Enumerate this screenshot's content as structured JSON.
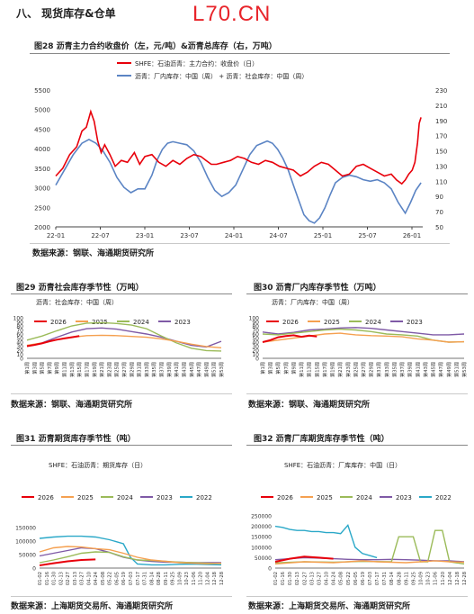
{
  "header": {
    "section_title": "八、   现货库存&仓单",
    "brand": "L70.CN"
  },
  "colors": {
    "red": "#e8000b",
    "blue": "#5b84c4",
    "orange": "#f5a050",
    "green": "#9bbb59",
    "purple": "#7f5aa6",
    "cyan": "#2aa8c8"
  },
  "chart_data": [
    {
      "id": "fig28",
      "type": "line",
      "title": "图28  沥青主力合约收盘价（左，元/吨）&沥青总库存（右，万吨）",
      "source": "数据来源：钢联、海通期货研究所",
      "x_ticks": [
        "22-01",
        "22-07",
        "23-01",
        "23-07",
        "24-01",
        "24-07",
        "25-01",
        "25-07",
        "26-01"
      ],
      "x_range": [
        2022.0,
        2026.2
      ],
      "y_left": {
        "ticks": [
          "2000",
          "2500",
          "3000",
          "3500",
          "4000",
          "4500",
          "5000",
          "5500"
        ],
        "range": [
          2000,
          5500
        ]
      },
      "y_right": {
        "ticks": [
          "50",
          "70",
          "90",
          "110",
          "130",
          "150",
          "170",
          "190",
          "210",
          "230"
        ],
        "range": [
          50,
          230
        ]
      },
      "series": [
        {
          "name": "SHFE：石油沥青：主力合约：收盘价（日）",
          "color": "red",
          "axis": "left",
          "x": [
            2022.0,
            2022.08,
            2022.16,
            2022.24,
            2022.3,
            2022.35,
            2022.4,
            2022.44,
            2022.48,
            2022.52,
            2022.56,
            2022.62,
            2022.68,
            2022.75,
            2022.82,
            2022.9,
            2022.96,
            2023.02,
            2023.1,
            2023.18,
            2023.26,
            2023.34,
            2023.42,
            2023.5,
            2023.58,
            2023.66,
            2023.72,
            2023.78,
            2023.84,
            2023.92,
            2024.0,
            2024.08,
            2024.16,
            2024.24,
            2024.32,
            2024.4,
            2024.48,
            2024.56,
            2024.64,
            2024.72,
            2024.8,
            2024.88,
            2024.96,
            2025.04,
            2025.12,
            2025.2,
            2025.28,
            2025.36,
            2025.44,
            2025.52,
            2025.6,
            2025.68,
            2025.76,
            2025.84,
            2025.9,
            2025.96,
            2026.0,
            2026.04,
            2026.08,
            2026.11,
            2026.14,
            2026.16,
            2026.18
          ],
          "y": [
            3300,
            3500,
            3850,
            4050,
            4450,
            4550,
            4950,
            4700,
            4200,
            3900,
            4100,
            3850,
            3550,
            3700,
            3650,
            3900,
            3600,
            3800,
            3850,
            3650,
            3550,
            3700,
            3600,
            3750,
            3850,
            3800,
            3700,
            3600,
            3600,
            3650,
            3700,
            3800,
            3750,
            3650,
            3600,
            3700,
            3650,
            3550,
            3500,
            3450,
            3300,
            3400,
            3550,
            3650,
            3600,
            3450,
            3300,
            3350,
            3550,
            3600,
            3500,
            3400,
            3300,
            3350,
            3200,
            3100,
            3200,
            3350,
            3450,
            3650,
            4150,
            4650,
            4800
          ]
        },
        {
          "name": "沥青：厂内库存：中国（周） + 沥青：社会库存：中国（周）",
          "color": "blue",
          "axis": "right",
          "x": [
            2022.0,
            2022.1,
            2022.2,
            2022.3,
            2022.38,
            2022.46,
            2022.54,
            2022.62,
            2022.7,
            2022.78,
            2022.86,
            2022.94,
            2023.02,
            2023.1,
            2023.16,
            2023.22,
            2023.28,
            2023.34,
            2023.42,
            2023.5,
            2023.58,
            2023.66,
            2023.74,
            2023.82,
            2023.9,
            2023.98,
            2024.06,
            2024.14,
            2024.22,
            2024.3,
            2024.36,
            2024.42,
            2024.48,
            2024.54,
            2024.6,
            2024.66,
            2024.72,
            2024.78,
            2024.84,
            2024.9,
            2024.96,
            2025.02,
            2025.08,
            2025.14,
            2025.2,
            2025.28,
            2025.36,
            2025.44,
            2025.52,
            2025.6,
            2025.68,
            2025.76,
            2025.84,
            2025.92,
            2026.0,
            2026.06,
            2026.12,
            2026.18
          ],
          "y": [
            105,
            125,
            145,
            160,
            165,
            160,
            150,
            135,
            115,
            102,
            95,
            100,
            100,
            118,
            138,
            152,
            160,
            162,
            160,
            158,
            150,
            135,
            115,
            98,
            90,
            95,
            105,
            125,
            145,
            157,
            160,
            163,
            160,
            152,
            140,
            125,
            105,
            85,
            66,
            58,
            55,
            62,
            75,
            92,
            108,
            115,
            118,
            116,
            112,
            110,
            112,
            108,
            100,
            82,
            68,
            82,
            98,
            108
          ]
        }
      ]
    },
    {
      "id": "fig29",
      "type": "line",
      "title": "图29  沥青社会库存季节性（万吨）",
      "subtitle": "沥青：社会库存：中国（周）",
      "source": "数据来源：钢联、海通期货研究所",
      "x_ticks": [
        "第1周",
        "第3周",
        "第5周",
        "第7周",
        "第9周",
        "第11周",
        "第13周",
        "第15周",
        "第17周",
        "第19周",
        "第21周",
        "第23周",
        "第25周",
        "第27周",
        "第29周",
        "第31周",
        "第33周",
        "第35周",
        "第37周",
        "第39周",
        "第41周",
        "第43周",
        "第45周",
        "第47周",
        "第49周",
        "第51周",
        "第53周"
      ],
      "x_range": [
        1,
        53
      ],
      "y_ticks": [
        "0",
        "10",
        "20",
        "30",
        "40",
        "50",
        "60",
        "70",
        "80",
        "90",
        "100"
      ],
      "y_range": [
        0,
        100
      ],
      "series": [
        {
          "name": "2026",
          "color": "red",
          "x": [
            1,
            3,
            5,
            7,
            9,
            11,
            13,
            15
          ],
          "y": [
            30,
            33,
            37,
            42,
            46,
            49,
            52,
            55
          ]
        },
        {
          "name": "2025",
          "color": "orange",
          "x": [
            1,
            5,
            9,
            13,
            17,
            21,
            25,
            29,
            33,
            37,
            41,
            45,
            49,
            53
          ],
          "y": [
            32,
            38,
            46,
            52,
            56,
            57,
            56,
            54,
            52,
            48,
            42,
            35,
            29,
            26
          ]
        },
        {
          "name": "2024",
          "color": "green",
          "x": [
            1,
            5,
            9,
            13,
            17,
            21,
            25,
            29,
            33,
            37,
            41,
            45,
            49,
            53
          ],
          "y": [
            45,
            55,
            68,
            80,
            87,
            88,
            86,
            82,
            73,
            55,
            38,
            25,
            19,
            18
          ]
        },
        {
          "name": "2023",
          "color": "purple",
          "x": [
            1,
            5,
            9,
            13,
            17,
            21,
            25,
            29,
            33,
            37,
            41,
            45,
            49,
            53
          ],
          "y": [
            30,
            38,
            52,
            65,
            73,
            75,
            72,
            66,
            60,
            52,
            42,
            32,
            28,
            42
          ]
        }
      ]
    },
    {
      "id": "fig30",
      "type": "line",
      "title": "图30  沥青厂内库存季节性（万吨）",
      "subtitle": "沥青：厂内库存：中国（周）",
      "source": "数据来源：钢联、海通期货研究所",
      "x_ticks": [
        "第1周",
        "第3周",
        "第5周",
        "第7周",
        "第9周",
        "第11周",
        "第13周",
        "第15周",
        "第17周",
        "第19周",
        "第21周",
        "第23周",
        "第25周",
        "第27周",
        "第29周",
        "第31周",
        "第33周",
        "第35周",
        "第37周",
        "第39周",
        "第41周",
        "第43周",
        "第45周",
        "第47周",
        "第49周",
        "第51周",
        "第53周"
      ],
      "x_range": [
        1,
        53
      ],
      "y_ticks": [
        "0",
        "10",
        "20",
        "30",
        "40",
        "50",
        "60",
        "70",
        "80",
        "90",
        "100"
      ],
      "y_range": [
        0,
        100
      ],
      "series": [
        {
          "name": "2026",
          "color": "red",
          "x": [
            1,
            3,
            5,
            7,
            9,
            11,
            13,
            15
          ],
          "y": [
            40,
            45,
            52,
            55,
            57,
            53,
            56,
            54
          ]
        },
        {
          "name": "2025",
          "color": "orange",
          "x": [
            1,
            5,
            9,
            13,
            17,
            21,
            25,
            29,
            33,
            37,
            41,
            45,
            49,
            53
          ],
          "y": [
            40,
            45,
            50,
            55,
            60,
            62,
            58,
            56,
            55,
            53,
            48,
            45,
            40,
            41
          ]
        },
        {
          "name": "2024",
          "color": "green",
          "x": [
            1,
            5,
            9,
            13,
            17,
            21,
            25,
            29,
            33,
            37,
            41,
            45,
            49,
            53
          ],
          "y": [
            60,
            58,
            62,
            66,
            70,
            72,
            70,
            66,
            60,
            58,
            55,
            45,
            40,
            41
          ]
        },
        {
          "name": "2023",
          "color": "purple",
          "x": [
            1,
            5,
            9,
            13,
            17,
            21,
            25,
            29,
            33,
            37,
            41,
            45,
            49,
            53
          ],
          "y": [
            65,
            60,
            64,
            70,
            72,
            75,
            76,
            74,
            70,
            66,
            62,
            58,
            58,
            60
          ]
        }
      ]
    },
    {
      "id": "fig31",
      "type": "line",
      "title": "图31  沥青期货库存季节性（吨）",
      "subtitle": "SHFE：石油沥青：期货库存（日）",
      "source": "数据来源：上海期货交易所、海通期货研究所",
      "x_ticks": [
        "01-02",
        "01-16",
        "01-30",
        "02-13",
        "02-27",
        "03-13",
        "03-27",
        "04-10",
        "04-24",
        "05-08",
        "05-22",
        "06-05",
        "06-19",
        "07-03",
        "07-17",
        "07-31",
        "08-14",
        "08-28",
        "09-11",
        "09-25",
        "10-09",
        "10-23",
        "11-06",
        "11-20",
        "12-04",
        "12-18",
        "12-28"
      ],
      "x_range": [
        0,
        26
      ],
      "y_ticks": [
        "0",
        "50000",
        "100000",
        "150000"
      ],
      "y_range": [
        0,
        150000
      ],
      "series": [
        {
          "name": "2026",
          "color": "red",
          "x": [
            0,
            2,
            4,
            6,
            8
          ],
          "y": [
            10000,
            18000,
            25000,
            30000,
            32000
          ]
        },
        {
          "name": "2025",
          "color": "orange",
          "x": [
            0,
            2,
            4,
            6,
            8,
            10,
            12,
            14,
            16,
            18,
            20,
            22,
            24,
            26
          ],
          "y": [
            60000,
            75000,
            80000,
            78000,
            72000,
            68000,
            55000,
            40000,
            30000,
            25000,
            20000,
            18000,
            16000,
            18000
          ]
        },
        {
          "name": "2024",
          "color": "green",
          "x": [
            0,
            2,
            4,
            6,
            8,
            10,
            12,
            14,
            16,
            18,
            20,
            22,
            24,
            26
          ],
          "y": [
            20000,
            30000,
            42000,
            55000,
            60000,
            58000,
            42000,
            30000,
            28000,
            25000,
            22000,
            20000,
            18000,
            17000
          ]
        },
        {
          "name": "2023",
          "color": "purple",
          "x": [
            0,
            2,
            4,
            6,
            8,
            10,
            12,
            14,
            16,
            18,
            20,
            22,
            24,
            26
          ],
          "y": [
            45000,
            55000,
            65000,
            75000,
            72000,
            58000,
            40000,
            30000,
            25000,
            22000,
            22000,
            20000,
            20000,
            20000
          ]
        },
        {
          "name": "2022",
          "color": "cyan",
          "x": [
            0,
            2,
            4,
            6,
            8,
            10,
            12,
            13,
            14,
            16,
            18,
            20,
            22,
            24,
            26
          ],
          "y": [
            110000,
            115000,
            118000,
            118000,
            115000,
            105000,
            90000,
            40000,
            15000,
            12000,
            12000,
            14000,
            15000,
            13000,
            12000
          ]
        }
      ]
    },
    {
      "id": "fig32",
      "type": "line",
      "title": "图32  沥青厂库期货库存季节性（吨）",
      "subtitle": "SHFE：石油沥青：厂库库存：中国（日）",
      "source": "数据来源：上海期货交易所、海通期货研究所",
      "x_ticks": [
        "01-02",
        "01-16",
        "01-30",
        "02-13",
        "02-27",
        "03-13",
        "03-27",
        "04-10",
        "04-24",
        "05-08",
        "05-22",
        "06-05",
        "06-19",
        "07-03",
        "07-17",
        "07-31",
        "08-14",
        "08-28",
        "09-11",
        "09-25",
        "10-09",
        "10-23",
        "11-06",
        "11-20",
        "12-04",
        "12-18",
        "12-28"
      ],
      "x_range": [
        0,
        26
      ],
      "y_ticks": [
        "0",
        "50000",
        "100000",
        "150000",
        "200000",
        "250000"
      ],
      "y_range": [
        0,
        250000
      ],
      "series": [
        {
          "name": "2026",
          "color": "red",
          "x": [
            0,
            2,
            4,
            6,
            8
          ],
          "y": [
            30000,
            45000,
            55000,
            50000,
            45000
          ]
        },
        {
          "name": "2025",
          "color": "orange",
          "x": [
            0,
            2,
            4,
            6,
            8,
            10,
            12,
            14,
            16,
            18,
            20,
            22,
            24,
            26
          ],
          "y": [
            20000,
            25000,
            30000,
            28000,
            26000,
            30000,
            35000,
            30000,
            28000,
            26000,
            30000,
            35000,
            30000,
            28000
          ]
        },
        {
          "name": "2024",
          "color": "green",
          "x": [
            0,
            4,
            8,
            12,
            16,
            17,
            18,
            19,
            20,
            21,
            22,
            23,
            24,
            26
          ],
          "y": [
            25000,
            30000,
            28000,
            32000,
            30000,
            150000,
            150000,
            150000,
            30000,
            30000,
            180000,
            180000,
            30000,
            20000
          ]
        },
        {
          "name": "2023",
          "color": "purple",
          "x": [
            0,
            2,
            4,
            6,
            8,
            10,
            12,
            14,
            16,
            18,
            20,
            22,
            24,
            26
          ],
          "y": [
            40000,
            45000,
            50000,
            48000,
            45000,
            42000,
            40000,
            40000,
            42000,
            40000,
            38000,
            35000,
            35000,
            30000
          ]
        },
        {
          "name": "2022",
          "color": "cyan",
          "x": [
            0,
            1,
            2,
            3,
            4,
            5,
            6,
            7,
            8,
            9,
            10,
            11,
            12,
            13,
            14
          ],
          "y": [
            200000,
            195000,
            185000,
            180000,
            180000,
            175000,
            175000,
            170000,
            170000,
            165000,
            205000,
            100000,
            70000,
            60000,
            50000
          ]
        }
      ]
    }
  ]
}
